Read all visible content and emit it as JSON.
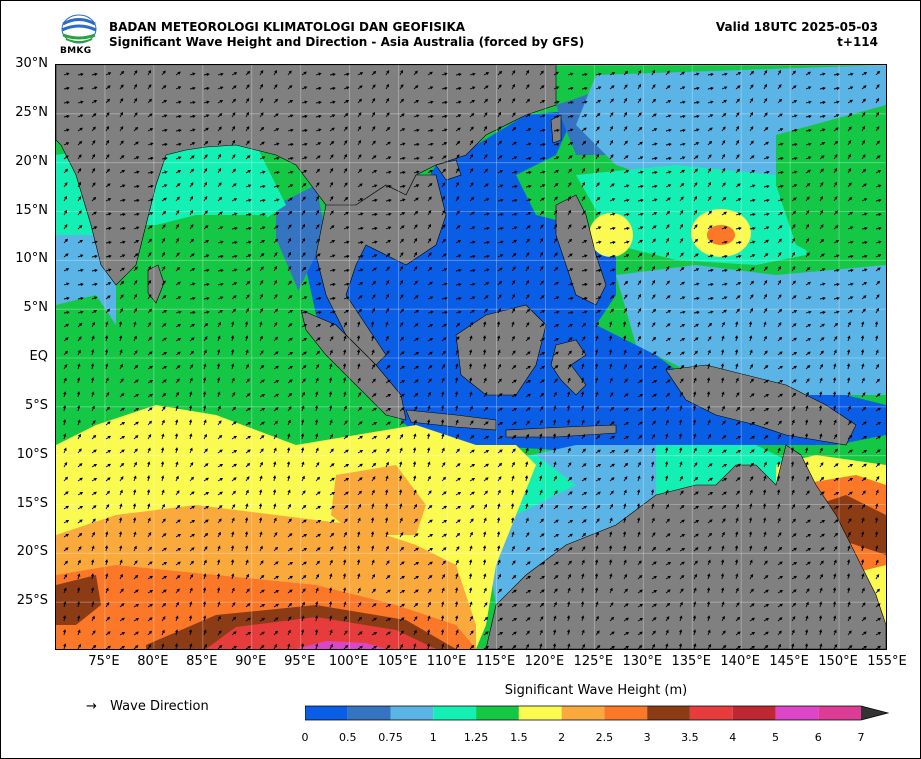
{
  "header": {
    "agency": "BADAN METEOROLOGI KLIMATOLOGI DAN GEOFISIKA",
    "subtitle": "Significant Wave Height and Direction - Asia Australia (forced by GFS)",
    "valid": "Valid 18UTC 2025-05-03",
    "lead": "t+114",
    "logo_text": "BMKG"
  },
  "map": {
    "lon_range": [
      70,
      155
    ],
    "lat_range": [
      -30,
      30
    ],
    "lat_ticks": [
      {
        "lat": 30,
        "label": "30°N"
      },
      {
        "lat": 25,
        "label": "25°N"
      },
      {
        "lat": 20,
        "label": "20°N"
      },
      {
        "lat": 15,
        "label": "15°N"
      },
      {
        "lat": 10,
        "label": "10°N"
      },
      {
        "lat": 5,
        "label": "5°N"
      },
      {
        "lat": 0,
        "label": "EQ"
      },
      {
        "lat": -5,
        "label": "5°S"
      },
      {
        "lat": -10,
        "label": "10°S"
      },
      {
        "lat": -15,
        "label": "15°S"
      },
      {
        "lat": -20,
        "label": "20°S"
      },
      {
        "lat": -25,
        "label": "25°S"
      }
    ],
    "lon_ticks": [
      {
        "lon": 75,
        "label": "75°E"
      },
      {
        "lon": 80,
        "label": "80°E"
      },
      {
        "lon": 85,
        "label": "85°E"
      },
      {
        "lon": 90,
        "label": "90°E"
      },
      {
        "lon": 95,
        "label": "95°E"
      },
      {
        "lon": 100,
        "label": "100°E"
      },
      {
        "lon": 105,
        "label": "105°E"
      },
      {
        "lon": 110,
        "label": "110°E"
      },
      {
        "lon": 115,
        "label": "115°E"
      },
      {
        "lon": 120,
        "label": "120°E"
      },
      {
        "lon": 125,
        "label": "125°E"
      },
      {
        "lon": 130,
        "label": "130°E"
      },
      {
        "lon": 135,
        "label": "135°E"
      },
      {
        "lon": 140,
        "label": "140°E"
      },
      {
        "lon": 145,
        "label": "145°E"
      },
      {
        "lon": 150,
        "label": "150°E"
      },
      {
        "lon": 155,
        "label": "155°E"
      }
    ],
    "land_color": "#808080",
    "grid": true
  },
  "legend": {
    "direction_label": "Wave Direction",
    "direction_symbol": "→",
    "colorbar_title": "Significant Wave Height (m)",
    "levels": [
      "0",
      "0.5",
      "0.75",
      "1",
      "1.25",
      "1.5",
      "2",
      "2.5",
      "3",
      "3.5",
      "4",
      "5",
      "6",
      "7"
    ],
    "colors": [
      "#0a5ee6",
      "#3474c0",
      "#5ab4e6",
      "#14f0b4",
      "#14c846",
      "#fafa50",
      "#faaa3c",
      "#fa7828",
      "#8c3c14",
      "#e63c3c",
      "#be2832",
      "#dc46c8",
      "#dc3c96"
    ],
    "extend_color": "#333333"
  }
}
